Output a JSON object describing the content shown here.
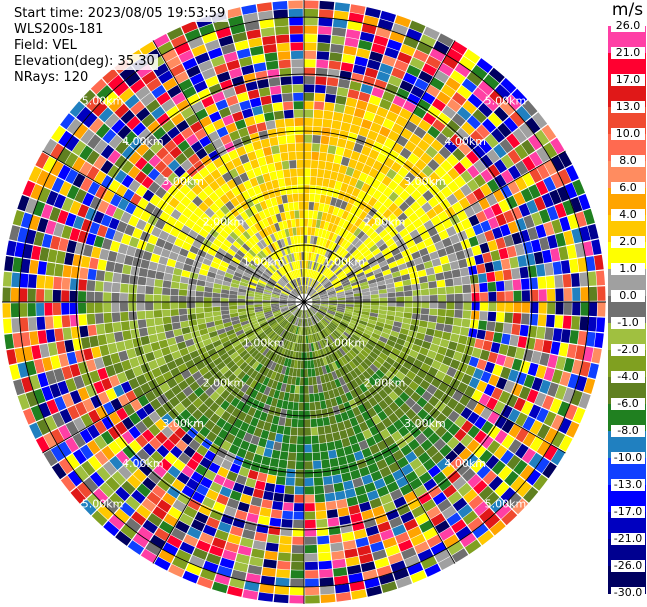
{
  "info": {
    "start_time": "Start time: 2023/08/05 19:53:59",
    "station": "WLS200s-181",
    "field": "Field: VEL",
    "elevation": "Elevation(deg): 35.30",
    "nrays": "NRays: 120"
  },
  "chart_data": {
    "type": "heatmap",
    "projection": "polar PPI",
    "field": "VEL",
    "elevation_deg": 35.3,
    "nrays": 120,
    "range_rings_km": [
      1,
      2,
      3,
      4,
      5
    ],
    "range_labels": [
      "1.00km",
      "2.00km",
      "3.00km",
      "4.00km",
      "5.00km"
    ],
    "max_range_km": 5.3,
    "colorbar": {
      "unit": "m/s",
      "ticks": [
        "26.0",
        "21.0",
        "17.0",
        "13.0",
        "10.0",
        "8.0",
        "6.0",
        "4.0",
        "2.0",
        "1.0",
        "0.0",
        "-1.0",
        "-2.0",
        "-4.0",
        "-6.0",
        "-8.0",
        "-10.0",
        "-13.0",
        "-17.0",
        "-21.0",
        "-26.0",
        "-30.0"
      ],
      "colors": [
        "#ff3fa5",
        "#ff0030",
        "#e01818",
        "#f04a30",
        "#ff6a50",
        "#ff8c60",
        "#ffa400",
        "#ffc800",
        "#ffff00",
        "#a0a0a0",
        "#707070",
        "#a0c040",
        "#80a020",
        "#608020",
        "#208020",
        "#2080c0",
        "#1040ff",
        "#0000ff",
        "#0000c0",
        "#000090",
        "#000060"
      ]
    }
  }
}
